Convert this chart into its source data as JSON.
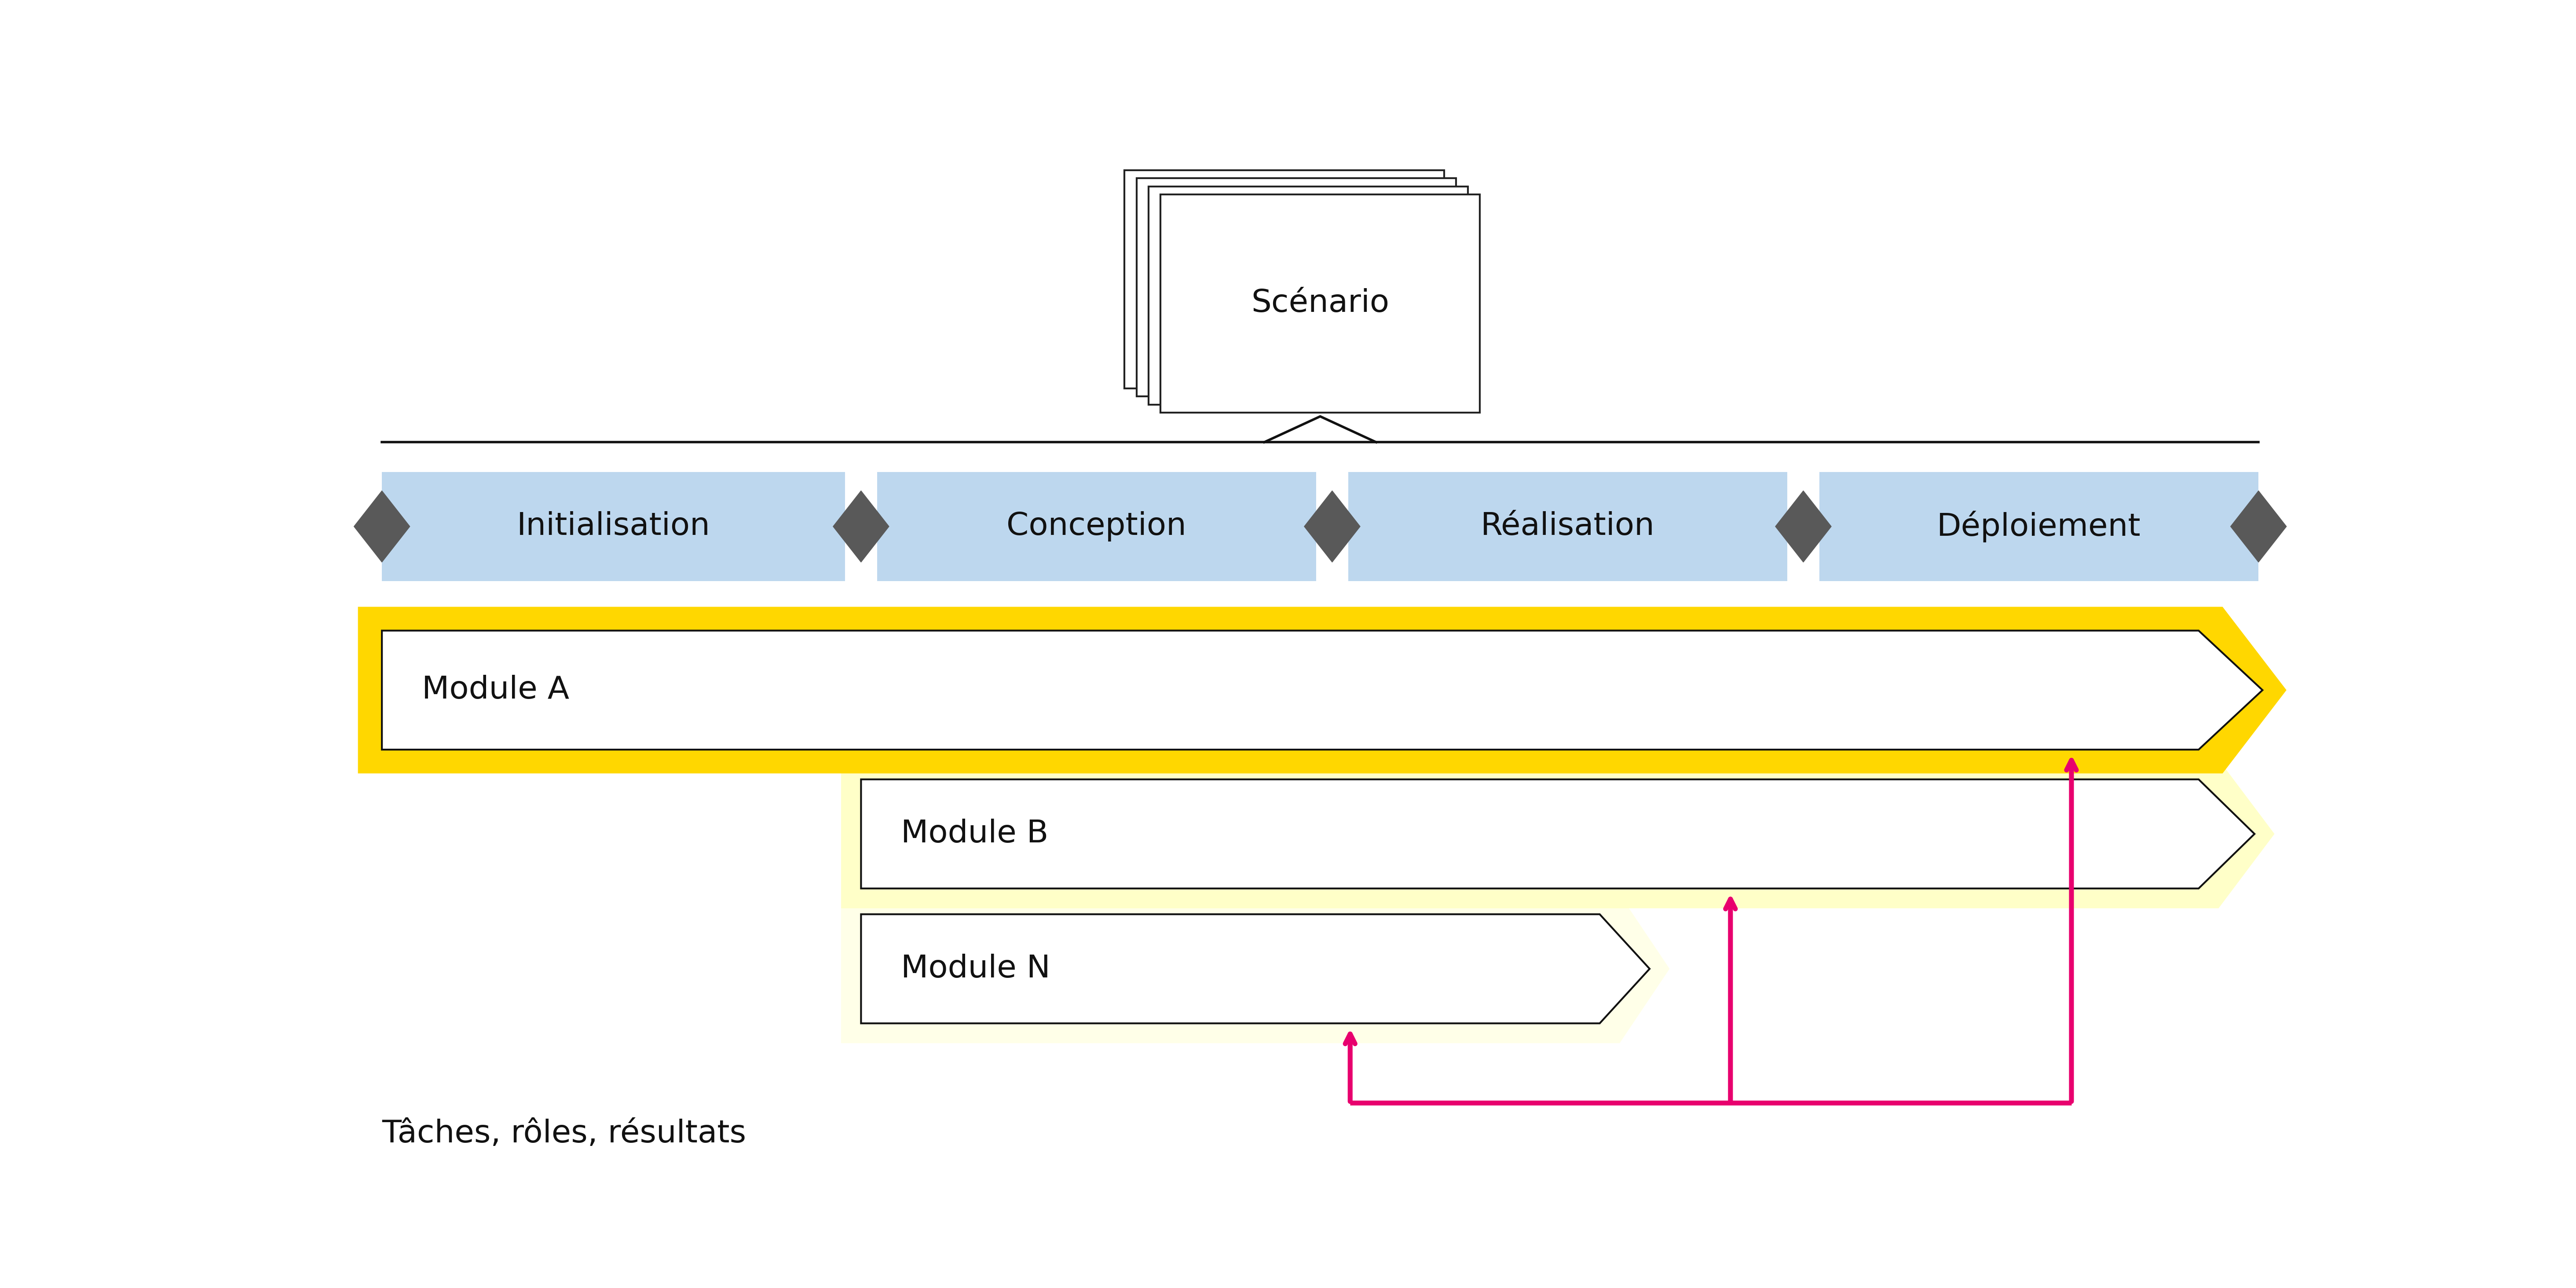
{
  "background_color": "#ffffff",
  "scenario_text": "Scénario",
  "phases": [
    "Initialisation",
    "Conception",
    "Réalisation",
    "Déploiement"
  ],
  "phase_bg_color": "#bdd7ee",
  "diamond_color": "#595959",
  "module_a_text": "Module A",
  "module_b_text": "Module B",
  "module_n_text": "Module N",
  "arrow_color": "#e8006e",
  "label_text": "Tâches, rôles, résultats",
  "label_fontsize": 52,
  "phase_fontsize": 52,
  "module_fontsize": 52,
  "scenario_fontsize": 52,
  "line_color": "#111111"
}
